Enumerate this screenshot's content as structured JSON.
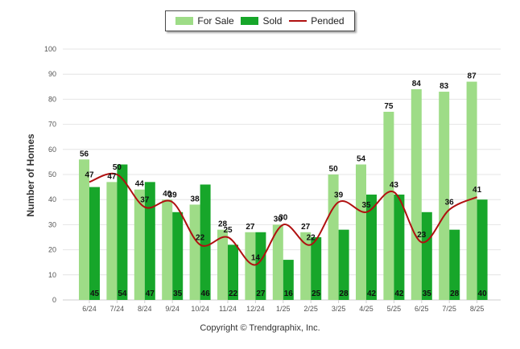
{
  "legend": {
    "for_sale": "For Sale",
    "sold": "Sold",
    "pended": "Pended"
  },
  "copyright": "Copyright © Trendgraphix, Inc.",
  "colors": {
    "for_sale": "#9edc87",
    "sold": "#17a62a",
    "pended": "#b01010",
    "grid": "#e4e4e4",
    "axis_text": "#555555"
  },
  "chart_data": {
    "type": "bar",
    "ylabel": "Number of Homes",
    "xlabel": "",
    "ylim": [
      0,
      100
    ],
    "yticks": [
      0,
      10,
      20,
      30,
      40,
      50,
      60,
      70,
      80,
      90,
      100
    ],
    "grid": true,
    "legend_position": "top-center",
    "categories": [
      "6/24",
      "7/24",
      "8/24",
      "9/24",
      "10/24",
      "11/24",
      "12/24",
      "1/25",
      "2/25",
      "3/25",
      "4/25",
      "5/25",
      "6/25",
      "7/25",
      "8/25"
    ],
    "series": [
      {
        "name": "For Sale",
        "kind": "bar",
        "values": [
          56,
          47,
          44,
          40,
          38,
          28,
          27,
          30,
          27,
          50,
          54,
          75,
          84,
          83,
          87
        ]
      },
      {
        "name": "Sold",
        "kind": "bar",
        "values": [
          45,
          54,
          47,
          35,
          46,
          22,
          27,
          16,
          25,
          28,
          42,
          42,
          35,
          28,
          40
        ]
      },
      {
        "name": "Pended",
        "kind": "line",
        "values": [
          47,
          50,
          37,
          39,
          22,
          25,
          14,
          30,
          22,
          39,
          35,
          43,
          23,
          36,
          41
        ]
      }
    ]
  }
}
